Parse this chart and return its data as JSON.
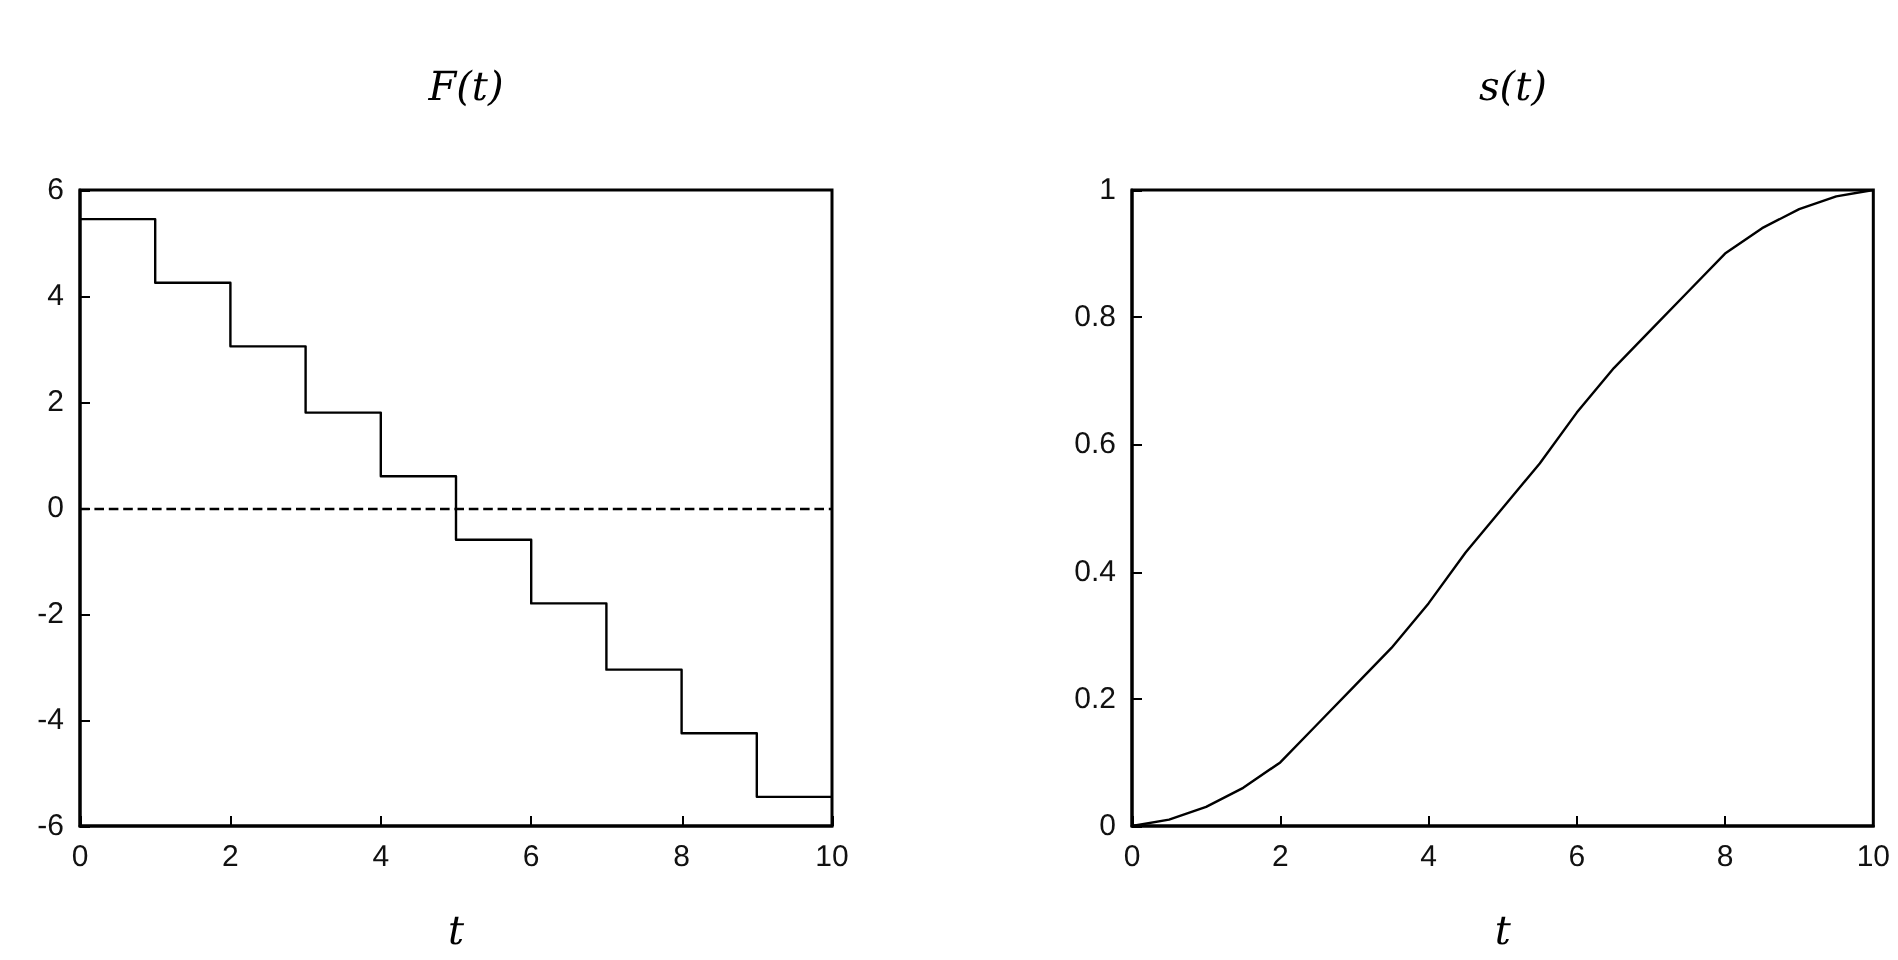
{
  "chart_data": [
    {
      "type": "step",
      "title": "F(t)",
      "xlabel": "t",
      "color": "#000000",
      "marker": "none",
      "x": [
        0,
        1,
        2,
        3,
        4,
        5,
        6,
        7,
        8,
        9,
        10
      ],
      "values": [
        5.45,
        4.25,
        3.05,
        1.8,
        0.6,
        -0.6,
        -1.8,
        -3.05,
        -4.25,
        -5.45,
        -5.45
      ],
      "xlim": [
        0,
        10
      ],
      "xticks": [
        0,
        2,
        4,
        6,
        8,
        10
      ],
      "ylim": [
        -6,
        6
      ],
      "yticks": [
        -6,
        -4,
        -2,
        0,
        2,
        4,
        6
      ],
      "ref_lines": [
        {
          "axis": "y",
          "value": 0,
          "line_style": "dashed",
          "color": "#000000"
        }
      ]
    },
    {
      "type": "line",
      "title": "s(t)",
      "xlabel": "t",
      "color": "#000000",
      "marker": "none",
      "x": [
        0,
        0.5,
        1,
        1.5,
        2,
        2.5,
        3,
        3.5,
        4,
        4.5,
        5,
        5.5,
        6,
        6.5,
        7,
        7.5,
        8,
        8.5,
        9,
        9.5,
        10
      ],
      "values": [
        0,
        0.01,
        0.03,
        0.06,
        0.1,
        0.16,
        0.22,
        0.28,
        0.35,
        0.43,
        0.5,
        0.57,
        0.65,
        0.72,
        0.78,
        0.84,
        0.9,
        0.94,
        0.97,
        0.99,
        1
      ],
      "xlim": [
        0,
        10
      ],
      "xticks": [
        0,
        2,
        4,
        6,
        8,
        10
      ],
      "ylim": [
        0,
        1
      ],
      "yticks": [
        0,
        0.2,
        0.4,
        0.6,
        0.8,
        1
      ]
    }
  ]
}
